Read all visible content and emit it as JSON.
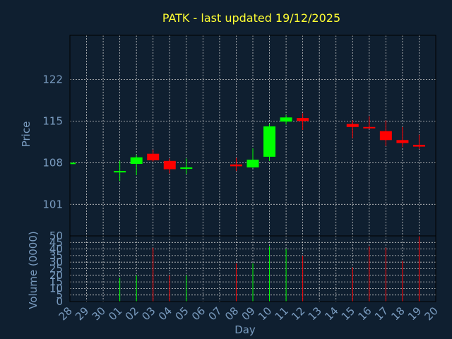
{
  "title": "PATK - last updated 19/12/2025",
  "colors": {
    "background": "#0f1f30",
    "title": "#ffff33",
    "axis_text": "#7a9cc0",
    "grid": "#c8c8c8",
    "frame": "#000000",
    "up": "#00ff00",
    "down": "#ff0000"
  },
  "chart_data": [
    {
      "type": "candlestick",
      "ylabel": "Price",
      "ylim": [
        95.7,
        129.4
      ],
      "yticks": [
        101,
        108,
        115,
        122
      ],
      "grid": true,
      "x": [
        "28",
        "29",
        "30",
        "01",
        "02",
        "03",
        "04",
        "05",
        "06",
        "07",
        "08",
        "09",
        "10",
        "11",
        "12",
        "13",
        "14",
        "15",
        "16",
        "17",
        "18",
        "19",
        "20"
      ],
      "candles": [
        {
          "day": "28",
          "open": 108.0,
          "high": 108.1,
          "low": 107.9,
          "close": 108.0
        },
        {
          "day": "01",
          "open": 106.5,
          "high": 108.3,
          "low": 104.9,
          "close": 106.6
        },
        {
          "day": "02",
          "open": 107.8,
          "high": 109.3,
          "low": 105.9,
          "close": 108.9
        },
        {
          "day": "03",
          "open": 109.5,
          "high": 110.2,
          "low": 108.2,
          "close": 108.4
        },
        {
          "day": "04",
          "open": 108.3,
          "high": 108.7,
          "low": 106.2,
          "close": 106.9
        },
        {
          "day": "05",
          "open": 107.0,
          "high": 108.7,
          "low": 106.1,
          "close": 107.2
        },
        {
          "day": "08",
          "open": 107.7,
          "high": 108.8,
          "low": 106.6,
          "close": 107.4
        },
        {
          "day": "09",
          "open": 107.2,
          "high": 110.4,
          "low": 107.1,
          "close": 108.5
        },
        {
          "day": "10",
          "open": 109.0,
          "high": 114.5,
          "low": 108.3,
          "close": 114.1
        },
        {
          "day": "11",
          "open": 114.9,
          "high": 116.0,
          "low": 114.4,
          "close": 115.6
        },
        {
          "day": "12",
          "open": 115.5,
          "high": 116.3,
          "low": 113.5,
          "close": 115.0
        },
        {
          "day": "15",
          "open": 114.5,
          "high": 115.1,
          "low": 112.1,
          "close": 114.0
        },
        {
          "day": "16",
          "open": 114.0,
          "high": 115.8,
          "low": 113.7,
          "close": 113.8
        },
        {
          "day": "17",
          "open": 113.3,
          "high": 115.1,
          "low": 110.8,
          "close": 111.8
        },
        {
          "day": "18",
          "open": 111.8,
          "high": 114.0,
          "low": 110.6,
          "close": 111.3
        },
        {
          "day": "19",
          "open": 111.0,
          "high": 112.7,
          "low": 110.3,
          "close": 110.7
        }
      ]
    },
    {
      "type": "bar",
      "xlabel": "Day",
      "ylabel": "Volume (0000)",
      "ylim": [
        0,
        50
      ],
      "yticks": [
        0,
        5,
        10,
        15,
        20,
        25,
        30,
        35,
        40,
        45,
        50
      ],
      "grid": true,
      "x": [
        "28",
        "29",
        "30",
        "01",
        "02",
        "03",
        "04",
        "05",
        "06",
        "07",
        "08",
        "09",
        "10",
        "11",
        "12",
        "13",
        "14",
        "15",
        "16",
        "17",
        "18",
        "19",
        "20"
      ],
      "bars": [
        {
          "day": "01",
          "value": 18,
          "direction": "up"
        },
        {
          "day": "02",
          "value": 20,
          "direction": "up"
        },
        {
          "day": "03",
          "value": 41,
          "direction": "down"
        },
        {
          "day": "04",
          "value": 20,
          "direction": "down"
        },
        {
          "day": "05",
          "value": 20,
          "direction": "up"
        },
        {
          "day": "08",
          "value": 29,
          "direction": "down"
        },
        {
          "day": "09",
          "value": 29,
          "direction": "up"
        },
        {
          "day": "10",
          "value": 42,
          "direction": "up"
        },
        {
          "day": "11",
          "value": 40,
          "direction": "up"
        },
        {
          "day": "12",
          "value": 35,
          "direction": "down"
        },
        {
          "day": "15",
          "value": 26,
          "direction": "down"
        },
        {
          "day": "16",
          "value": 42,
          "direction": "down"
        },
        {
          "day": "17",
          "value": 41,
          "direction": "down"
        },
        {
          "day": "18",
          "value": 31,
          "direction": "down"
        },
        {
          "day": "19",
          "value": 50,
          "direction": "down"
        }
      ]
    }
  ]
}
